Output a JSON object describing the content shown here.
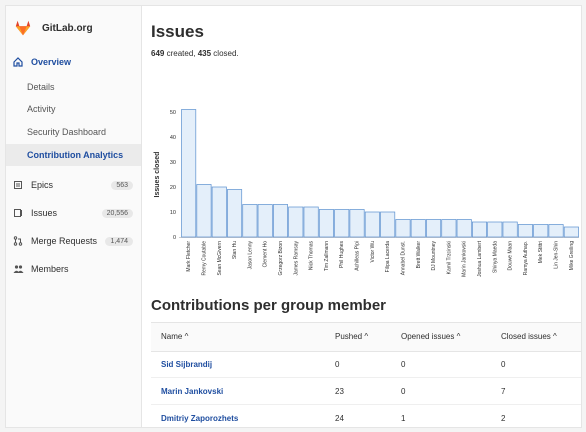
{
  "brand": {
    "name": "GitLab.org",
    "logo_icon": "gitlab-tanuki-icon"
  },
  "sidebar": {
    "overview": {
      "label": "Overview",
      "icon": "home-icon"
    },
    "sub_items": [
      {
        "label": "Details"
      },
      {
        "label": "Activity"
      },
      {
        "label": "Security Dashboard"
      },
      {
        "label": "Contribution Analytics"
      }
    ],
    "sections": [
      {
        "label": "Epics",
        "count": "563",
        "icon": "epic-icon"
      },
      {
        "label": "Issues",
        "count": "20,556",
        "icon": "issues-icon"
      },
      {
        "label": "Merge Requests",
        "count": "1,474",
        "icon": "merge-request-icon"
      },
      {
        "label": "Members",
        "count": null,
        "icon": "members-icon"
      }
    ]
  },
  "main": {
    "title": "Issues",
    "stats": {
      "created": "649",
      "created_text": " created, ",
      "closed": "435",
      "closed_text": " closed."
    },
    "contributions_title": "Contributions per group member"
  },
  "chart_data": {
    "type": "bar",
    "ylabel": "Issues closed",
    "ylim": [
      0,
      50
    ],
    "yticks": [
      0,
      10,
      20,
      30,
      40,
      50
    ],
    "categories": [
      "Mark Fletcher",
      "Remy Coutable",
      "Sean McGivern",
      "Stan Hu",
      "Jason Lenny",
      "Clement Ho",
      "Grzegorz Bizon",
      "James Ramsay",
      "Nick Thomas",
      "Tim Zallmann",
      "Phil Hughes",
      "Achilleas Pipi",
      "Victor Wu",
      "Filipa Lacerda",
      "Annabel Dunst.",
      "Brett Walker",
      "DJ Mountney",
      "Kamil Trzcinski",
      "Marin Jankovski",
      "Joshua Lambert",
      "Shinya Maeda",
      "Douwe Maan",
      "Ramya Authap.",
      "Mek Stittri",
      "Lin Jen-Shin",
      "Mike Greiling"
    ],
    "values": [
      51,
      21,
      20,
      19,
      13,
      13,
      13,
      12,
      12,
      11,
      11,
      11,
      10,
      10,
      7,
      7,
      7,
      7,
      7,
      6,
      6,
      6,
      5,
      5,
      5,
      4
    ],
    "bar_color": "#e4effa",
    "bar_stroke": "#5a8fcf"
  },
  "table": {
    "headers": {
      "name": "Name ^",
      "pushed": "Pushed ^",
      "opened": "Opened issues ^",
      "closed": "Closed issues ^"
    },
    "rows": [
      {
        "name": "Sid Sijbrandij",
        "pushed": "0",
        "opened": "0",
        "closed": "0"
      },
      {
        "name": "Marin Jankovski",
        "pushed": "23",
        "opened": "0",
        "closed": "7"
      },
      {
        "name": "Dmitriy Zaporozhets",
        "pushed": "24",
        "opened": "1",
        "closed": "2"
      }
    ]
  }
}
